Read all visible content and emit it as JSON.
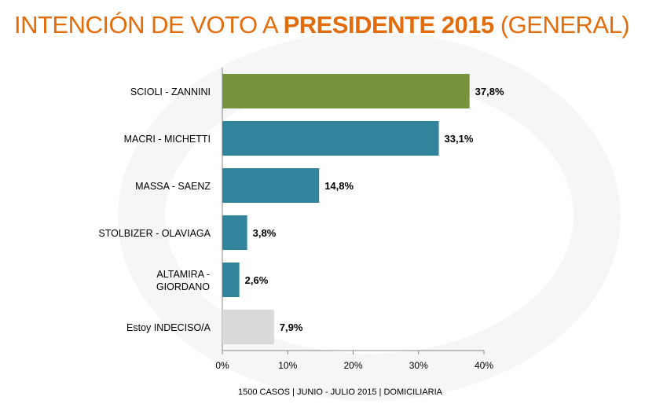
{
  "title": {
    "part1": "INTENCIÓN DE VOTO A ",
    "bold": "PRESIDENTE 2015",
    "part2": " (GENERAL)"
  },
  "footer": "1500 CASOS | JUNIO - JULIO 2015 | DOMICILIARIA",
  "chart_data": {
    "type": "bar",
    "orientation": "horizontal",
    "categories": [
      "SCIOLI - ZANNINI",
      "MACRI - MICHETTI",
      "MASSA - SAENZ",
      "STOLBIZER - OLAVIAGA",
      "ALTAMIRA - GIORDANO",
      "Estoy INDECISO/A"
    ],
    "values": [
      37.8,
      33.1,
      14.8,
      3.8,
      2.6,
      7.9
    ],
    "data_labels": [
      "37,8%",
      "33,1%",
      "14,8%",
      "3,8%",
      "2,6%",
      "7,9%"
    ],
    "colors": [
      "#77933c",
      "#31849b",
      "#31849b",
      "#31849b",
      "#31849b",
      "#d9d9d9"
    ],
    "xlim": [
      0,
      40
    ],
    "x_ticks": [
      "0%",
      "10%",
      "20%",
      "30%",
      "40%"
    ],
    "grid": false,
    "title_color": "#e36c0a"
  }
}
